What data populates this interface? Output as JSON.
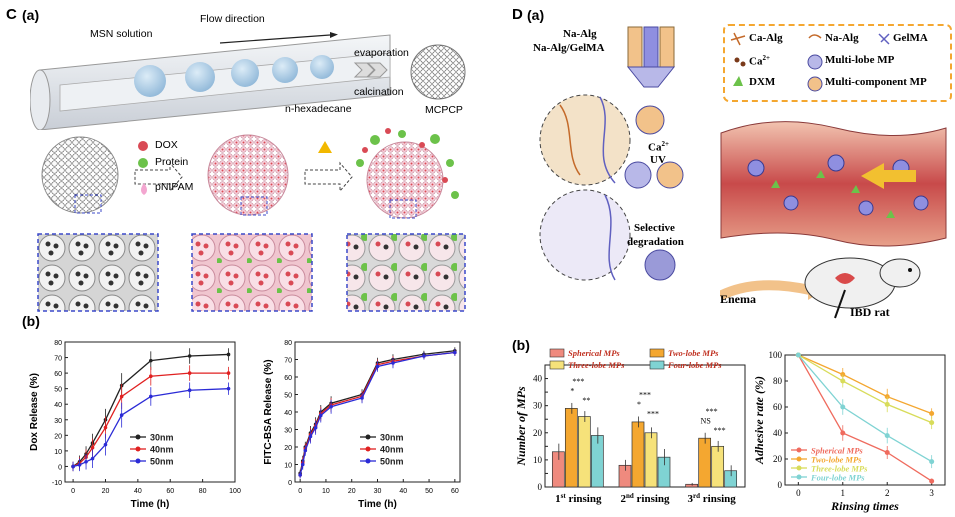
{
  "panelC": {
    "letter": "C",
    "sub_a": "(a)",
    "sub_b": "(b)",
    "msn_solution": "MSN solution",
    "flow_direction": "Flow direction",
    "evaporation": "evaporation",
    "calcination": "calcination",
    "n_hexadecane": "n-hexadecane",
    "mcpcp": "MCPCP",
    "dox": "DOX",
    "protein": "Protein",
    "pnipam": "pNIPAM",
    "colors": {
      "pink": "#f4b9c9",
      "red": "#d94a55",
      "green": "#6cc24a",
      "blue_dash": "#3b49c9"
    }
  },
  "panelD": {
    "letter": "D",
    "sub_a": "(a)",
    "sub_b": "(b)",
    "na_alg": "Na-Alg",
    "na_alg_gelma": "Na-Alg/GelMA",
    "ca_uv": "Ca",
    "ca_sup": "2+",
    "uv": "UV",
    "selective": "Selective",
    "degradation": "degradation",
    "enema": "Enema",
    "ibd_rat": "IBD rat",
    "legend": {
      "ca_alg": "Ca-Alg",
      "na_alg": "Na-Alg",
      "gelma": "GelMA",
      "ca2": "Ca",
      "ca2_sup": "2+",
      "multilobe": "Multi-lobe MP",
      "dxm": "DXM",
      "multicomponent": "Multi-component MP"
    }
  },
  "chart_data": [
    {
      "type": "line",
      "id": "dox",
      "xlabel": "Time (h)",
      "ylabel": "Dox Release (%)",
      "xlim": [
        -5,
        100
      ],
      "ylim": [
        -10,
        80
      ],
      "xticks": [
        0,
        20,
        40,
        60,
        80,
        100
      ],
      "yticks": [
        -10,
        0,
        10,
        20,
        30,
        40,
        50,
        60,
        70,
        80
      ],
      "x": [
        0,
        4,
        8,
        12,
        20,
        30,
        48,
        72,
        96
      ],
      "series": [
        {
          "name": "30nm",
          "color": "#222222",
          "values": [
            0,
            3,
            8,
            15,
            30,
            52,
            68,
            71,
            72
          ],
          "err": [
            3,
            4,
            5,
            6,
            7,
            8,
            6,
            5,
            4
          ]
        },
        {
          "name": "40nm",
          "color": "#e02020",
          "values": [
            0,
            2,
            6,
            12,
            25,
            45,
            58,
            60,
            60
          ],
          "err": [
            3,
            4,
            5,
            6,
            7,
            8,
            6,
            5,
            4
          ]
        },
        {
          "name": "50nm",
          "color": "#2b2bd6",
          "values": [
            0,
            1,
            3,
            5,
            14,
            33,
            45,
            49,
            50
          ],
          "err": [
            3,
            4,
            5,
            6,
            7,
            8,
            6,
            5,
            4
          ]
        }
      ]
    },
    {
      "type": "line",
      "id": "fitc",
      "xlabel": "Time (h)",
      "ylabel": "FITC-BSA Release (%)",
      "xlim": [
        -2,
        62
      ],
      "ylim": [
        0,
        80
      ],
      "xticks": [
        0,
        10,
        20,
        30,
        40,
        50,
        60
      ],
      "yticks": [
        0,
        10,
        20,
        30,
        40,
        50,
        60,
        70,
        80
      ],
      "x": [
        0,
        1,
        2,
        4,
        6,
        8,
        12,
        24,
        30,
        36,
        48,
        60
      ],
      "series": [
        {
          "name": "30nm",
          "color": "#222222",
          "values": [
            5,
            12,
            20,
            28,
            33,
            40,
            45,
            50,
            68,
            70,
            73,
            75
          ],
          "err": [
            2,
            3,
            3,
            4,
            4,
            4,
            4,
            3,
            3,
            3,
            2,
            2
          ]
        },
        {
          "name": "40nm",
          "color": "#e02020",
          "values": [
            4,
            11,
            19,
            27,
            32,
            39,
            44,
            49,
            67,
            69,
            72,
            74
          ],
          "err": [
            2,
            3,
            3,
            4,
            4,
            4,
            4,
            3,
            3,
            3,
            2,
            2
          ]
        },
        {
          "name": "50nm",
          "color": "#2b2bd6",
          "values": [
            4,
            10,
            18,
            26,
            31,
            38,
            43,
            48,
            66,
            68,
            72,
            74
          ],
          "err": [
            2,
            3,
            3,
            4,
            4,
            4,
            4,
            3,
            3,
            3,
            2,
            2
          ]
        }
      ]
    },
    {
      "type": "bar",
      "id": "mps",
      "xlabel": "",
      "ylabel": "Number of MPs",
      "ylim": [
        0,
        45
      ],
      "yticks": [
        0,
        5,
        10,
        15,
        20,
        25,
        30,
        35,
        40,
        45
      ],
      "categories": [
        {
          "main": "1",
          "sup": "st",
          "rest": " rinsing"
        },
        {
          "main": "2",
          "sup": "nd",
          "rest": " rinsing"
        },
        {
          "main": "3",
          "sup": "rd",
          "rest": " rinsing"
        }
      ],
      "series": [
        {
          "name": "Spherical MPs",
          "color": "#ef8a7e",
          "values": [
            13,
            8,
            1
          ],
          "err": [
            3,
            2,
            0.5
          ]
        },
        {
          "name": "Two-lobe MPs",
          "color": "#f4a730",
          "values": [
            29,
            24,
            18
          ],
          "err": [
            2,
            2,
            2
          ]
        },
        {
          "name": "Three-lobe MPs",
          "color": "#f6e27a",
          "values": [
            26,
            20,
            15
          ],
          "err": [
            2,
            2,
            2
          ]
        },
        {
          "name": "Four-lobe MPs",
          "color": "#7fd3d3",
          "values": [
            19,
            11,
            6
          ],
          "err": [
            3,
            3,
            2
          ]
        }
      ],
      "significance": [
        "***",
        "*",
        "**",
        "***",
        "*",
        "***",
        "***",
        "NS",
        "***"
      ]
    },
    {
      "type": "line",
      "id": "adhesive",
      "xlabel": "Rinsing times",
      "ylabel": "Adhesive rate (%)",
      "xlim": [
        -0.3,
        3.3
      ],
      "ylim": [
        0,
        100
      ],
      "xticks": [
        0,
        1,
        2,
        3
      ],
      "yticks": [
        0,
        20,
        40,
        60,
        80,
        100
      ],
      "x": [
        0,
        1,
        2,
        3
      ],
      "series": [
        {
          "name": "Spherical MPs",
          "color": "#ef6b5e",
          "values": [
            100,
            40,
            25,
            3
          ],
          "err": [
            0,
            6,
            5,
            2
          ]
        },
        {
          "name": "Two-lobe MPs",
          "color": "#f4a730",
          "values": [
            100,
            85,
            68,
            55
          ],
          "err": [
            0,
            5,
            6,
            4
          ]
        },
        {
          "name": "Three-lobe MPs",
          "color": "#d8dc5a",
          "values": [
            100,
            80,
            62,
            48
          ],
          "err": [
            0,
            5,
            6,
            5
          ]
        },
        {
          "name": "Four-lobe MPs",
          "color": "#7fd3d3",
          "values": [
            100,
            60,
            38,
            18
          ],
          "err": [
            0,
            6,
            6,
            5
          ]
        }
      ]
    }
  ]
}
